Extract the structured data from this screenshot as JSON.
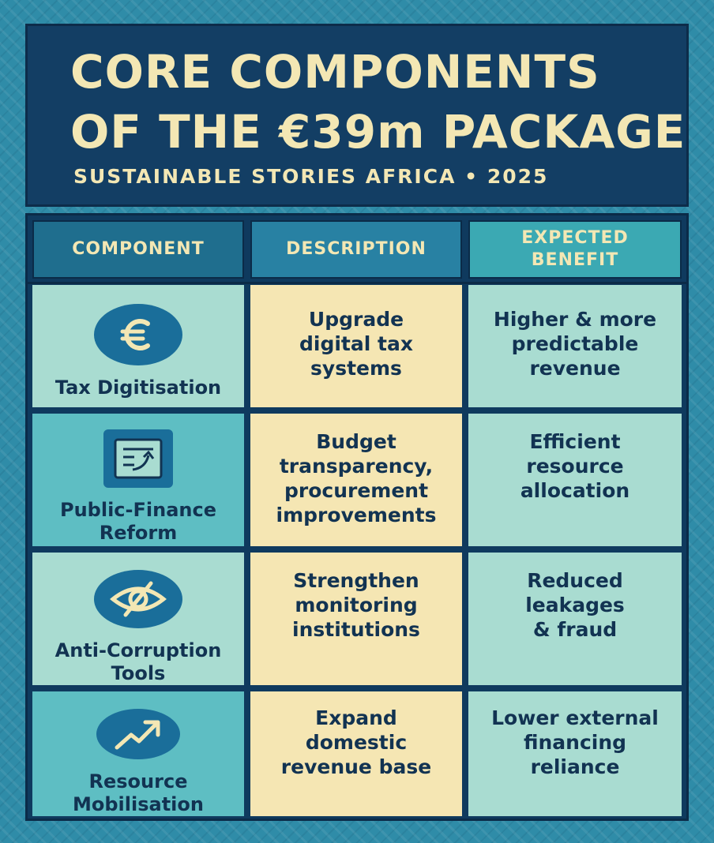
{
  "header": {
    "title_line1": "CORE COMPONENTS",
    "title_line2": "OF THE €39m PACKAGE",
    "subtitle": "SUSTAINABLE STORIES AFRICA • 2025"
  },
  "table": {
    "headers": [
      "COMPONENT",
      "DESCRIPTION",
      "EXPECTED BENEFIT"
    ],
    "rows": [
      {
        "component": "Tax Digitisation",
        "icon": "euro-icon",
        "description": "Upgrade digital tax systems",
        "benefit": "Higher & more predictable revenue"
      },
      {
        "component": "Public-Finance Reform",
        "icon": "document-arrow-icon",
        "description": "Budget transparency, procurement improvements",
        "benefit": "Efficient resource allocation"
      },
      {
        "component": "Anti-Corruption Tools",
        "icon": "eye-slash-icon",
        "description": "Strengthen monitoring institutions",
        "benefit": "Reduced leakages & fraud"
      },
      {
        "component": "Resource Mobilisation",
        "icon": "trending-up-icon",
        "description": "Expand domestic revenue base",
        "benefit": "Lower external financing reliance"
      }
    ]
  },
  "colors": {
    "navy": "#133e64",
    "cream": "#f5e6b3",
    "mint": "#a9dcd1",
    "teal": "#5ebec3",
    "title_text": "#f3e7b4"
  }
}
